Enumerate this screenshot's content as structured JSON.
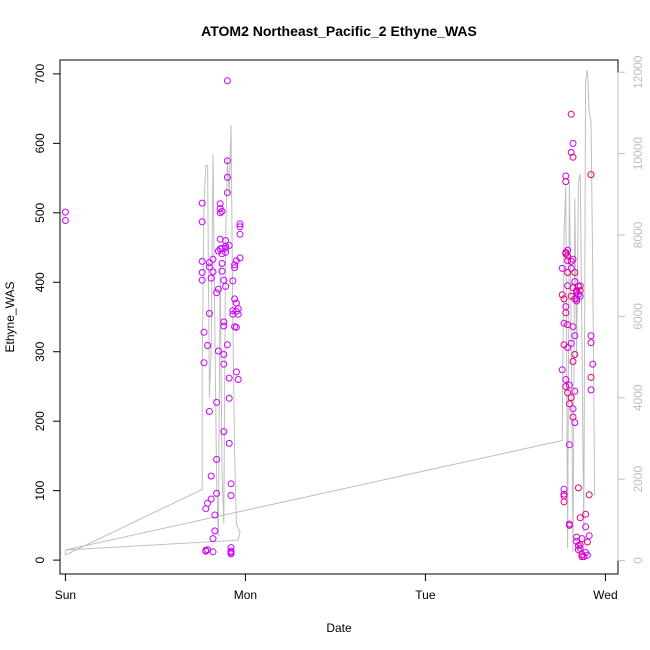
{
  "chart_data": {
    "type": "scatter",
    "title": "ATOM2 Northeast_Pacific_2 Ethyne_WAS",
    "xlabel": "Date",
    "ylabel": "Ethyne_WAS",
    "x_ticks": [
      "Sun",
      "Mon",
      "Tue",
      "Wed"
    ],
    "y_ticks": [
      0,
      100,
      200,
      300,
      400,
      500,
      600,
      700
    ],
    "y2_ticks": [
      0,
      2000,
      4000,
      6000,
      8000,
      10000,
      12000
    ],
    "xlim_days": [
      -0.03,
      3.07
    ],
    "ylim": [
      -20,
      720
    ],
    "y2lim": [
      -330,
      12300
    ],
    "grid": false,
    "colors": {
      "points": "#cc00ff",
      "points_alt": "#e6007e",
      "secondary_line": "#bfbfbf",
      "secondary_axis": "#bfbfbf"
    },
    "series": [
      {
        "kind": "points",
        "points": [
          [
            0.0,
            501
          ],
          [
            0.0,
            489
          ],
          [
            0.76,
            514
          ],
          [
            0.76,
            487
          ],
          [
            0.76,
            430
          ],
          [
            0.76,
            414
          ],
          [
            0.76,
            403
          ],
          [
            0.77,
            328
          ],
          [
            0.77,
            284
          ],
          [
            0.78,
            74
          ],
          [
            0.78,
            14
          ],
          [
            0.78,
            13
          ],
          [
            0.79,
            82
          ],
          [
            0.79,
            15
          ],
          [
            0.79,
            309
          ],
          [
            0.8,
            214
          ],
          [
            0.8,
            355
          ],
          [
            0.8,
            422
          ],
          [
            0.8,
            428
          ],
          [
            0.81,
            121
          ],
          [
            0.81,
            88
          ],
          [
            0.81,
            406
          ],
          [
            0.82,
            433
          ],
          [
            0.82,
            415
          ],
          [
            0.82,
            31
          ],
          [
            0.82,
            12
          ],
          [
            0.83,
            65
          ],
          [
            0.83,
            42
          ],
          [
            0.84,
            96
          ],
          [
            0.84,
            227
          ],
          [
            0.84,
            145
          ],
          [
            0.84,
            385
          ],
          [
            0.85,
            301
          ],
          [
            0.85,
            390
          ],
          [
            0.85,
            445
          ],
          [
            0.86,
            462
          ],
          [
            0.86,
            448
          ],
          [
            0.86,
            506
          ],
          [
            0.86,
            513
          ],
          [
            0.86,
            500
          ],
          [
            0.87,
            502
          ],
          [
            0.87,
            427
          ],
          [
            0.87,
            416
          ],
          [
            0.87,
            441
          ],
          [
            0.87,
            449
          ],
          [
            0.88,
            403
          ],
          [
            0.88,
            296
          ],
          [
            0.88,
            337
          ],
          [
            0.88,
            343
          ],
          [
            0.88,
            282
          ],
          [
            0.88,
            185
          ],
          [
            0.89,
            449
          ],
          [
            0.89,
            452
          ],
          [
            0.89,
            460
          ],
          [
            0.89,
            443
          ],
          [
            0.89,
            394
          ],
          [
            0.9,
            310
          ],
          [
            0.9,
            690
          ],
          [
            0.9,
            575
          ],
          [
            0.9,
            551
          ],
          [
            0.9,
            529
          ],
          [
            0.91,
            262
          ],
          [
            0.91,
            233
          ],
          [
            0.91,
            168
          ],
          [
            0.91,
            453
          ],
          [
            0.92,
            110
          ],
          [
            0.92,
            93
          ],
          [
            0.92,
            18
          ],
          [
            0.92,
            13
          ],
          [
            0.92,
            11
          ],
          [
            0.92,
            9
          ],
          [
            0.93,
            359
          ],
          [
            0.93,
            354
          ],
          [
            0.93,
            402
          ],
          [
            0.94,
            376
          ],
          [
            0.94,
            336
          ],
          [
            0.94,
            425
          ],
          [
            0.94,
            421
          ],
          [
            0.95,
            431
          ],
          [
            0.95,
            370
          ],
          [
            0.95,
            358
          ],
          [
            0.95,
            335
          ],
          [
            0.95,
            271
          ],
          [
            0.96,
            260
          ],
          [
            0.96,
            354
          ],
          [
            0.96,
            362
          ],
          [
            0.97,
            484
          ],
          [
            0.97,
            480
          ],
          [
            0.97,
            469
          ],
          [
            0.97,
            435
          ],
          [
            2.76,
            420
          ],
          [
            2.76,
            382
          ],
          [
            2.76,
            274
          ],
          [
            2.77,
            376
          ],
          [
            2.77,
            341
          ],
          [
            2.77,
            310
          ],
          [
            2.77,
            102
          ],
          [
            2.77,
            95
          ],
          [
            2.77,
            92
          ],
          [
            2.77,
            84
          ],
          [
            2.78,
            553
          ],
          [
            2.78,
            545
          ],
          [
            2.78,
            443
          ],
          [
            2.78,
            441
          ],
          [
            2.78,
            365
          ],
          [
            2.78,
            356
          ],
          [
            2.78,
            260
          ],
          [
            2.78,
            250
          ],
          [
            2.79,
            446
          ],
          [
            2.79,
            438
          ],
          [
            2.79,
            431
          ],
          [
            2.79,
            414
          ],
          [
            2.79,
            395
          ],
          [
            2.79,
            339
          ],
          [
            2.79,
            306
          ],
          [
            2.79,
            241
          ],
          [
            2.8,
            252
          ],
          [
            2.8,
            225
          ],
          [
            2.8,
            166
          ],
          [
            2.8,
            52
          ],
          [
            2.8,
            50
          ],
          [
            2.81,
            642
          ],
          [
            2.81,
            587
          ],
          [
            2.81,
            430
          ],
          [
            2.81,
            420
          ],
          [
            2.81,
            380
          ],
          [
            2.81,
            312
          ],
          [
            2.81,
            234
          ],
          [
            2.82,
            600
          ],
          [
            2.82,
            580
          ],
          [
            2.82,
            433
          ],
          [
            2.82,
            392
          ],
          [
            2.82,
            336
          ],
          [
            2.82,
            286
          ],
          [
            2.82,
            218
          ],
          [
            2.82,
            206
          ],
          [
            2.83,
            198
          ],
          [
            2.83,
            414
          ],
          [
            2.83,
            401
          ],
          [
            2.83,
            376
          ],
          [
            2.83,
            323
          ],
          [
            2.83,
            296
          ],
          [
            2.83,
            243
          ],
          [
            2.84,
            388
          ],
          [
            2.84,
            385
          ],
          [
            2.84,
            376
          ],
          [
            2.84,
            373
          ],
          [
            2.84,
            33
          ],
          [
            2.84,
            27
          ],
          [
            2.85,
            394
          ],
          [
            2.85,
            383
          ],
          [
            2.85,
            104
          ],
          [
            2.85,
            21
          ],
          [
            2.85,
            15
          ],
          [
            2.86,
            395
          ],
          [
            2.86,
            388
          ],
          [
            2.86,
            380
          ],
          [
            2.86,
            22
          ],
          [
            2.86,
            17
          ],
          [
            2.86,
            61
          ],
          [
            2.87,
            31
          ],
          [
            2.87,
            8
          ],
          [
            2.87,
            5
          ],
          [
            2.88,
            5
          ],
          [
            2.89,
            11
          ],
          [
            2.89,
            66
          ],
          [
            2.89,
            48
          ],
          [
            2.9,
            26
          ],
          [
            2.9,
            7
          ],
          [
            2.91,
            94
          ],
          [
            2.91,
            35
          ],
          [
            2.92,
            555
          ],
          [
            2.92,
            323
          ],
          [
            2.92,
            313
          ],
          [
            2.93,
            282
          ],
          [
            2.92,
            263
          ],
          [
            2.92,
            245
          ]
        ]
      },
      {
        "kind": "line",
        "axis": "secondary",
        "points": [
          [
            0.0,
            280
          ],
          [
            0.0,
            140
          ],
          [
            0.76,
            1750
          ],
          [
            0.76,
            4800
          ],
          [
            0.77,
            8700
          ],
          [
            0.78,
            9700
          ],
          [
            0.79,
            9700
          ],
          [
            0.8,
            4000
          ],
          [
            0.81,
            5200
          ],
          [
            0.82,
            9980
          ],
          [
            0.83,
            5800
          ],
          [
            0.84,
            2000
          ],
          [
            0.85,
            600
          ],
          [
            0.86,
            7300
          ],
          [
            0.87,
            2200
          ],
          [
            0.88,
            900
          ],
          [
            0.89,
            7800
          ],
          [
            0.9,
            9900
          ],
          [
            0.91,
            9000
          ],
          [
            0.92,
            10700
          ],
          [
            0.93,
            6000
          ],
          [
            0.94,
            2600
          ],
          [
            0.95,
            900
          ],
          [
            0.96,
            800
          ],
          [
            0.97,
            700
          ],
          [
            0.96,
            500
          ],
          [
            0.0,
            260
          ],
          [
            2.76,
            2950
          ],
          [
            2.77,
            8000
          ],
          [
            2.78,
            9200
          ],
          [
            2.79,
            300
          ],
          [
            2.8,
            9300
          ],
          [
            2.81,
            5600
          ],
          [
            2.82,
            200
          ],
          [
            2.83,
            8900
          ],
          [
            2.84,
            5000
          ],
          [
            2.85,
            9300
          ],
          [
            2.86,
            9500
          ],
          [
            2.87,
            5300
          ],
          [
            2.88,
            700
          ],
          [
            2.89,
            11800
          ],
          [
            2.9,
            12050
          ],
          [
            2.91,
            11000
          ],
          [
            2.92,
            10800
          ],
          [
            2.93,
            7000
          ],
          [
            2.94,
            1600
          ]
        ]
      }
    ]
  }
}
